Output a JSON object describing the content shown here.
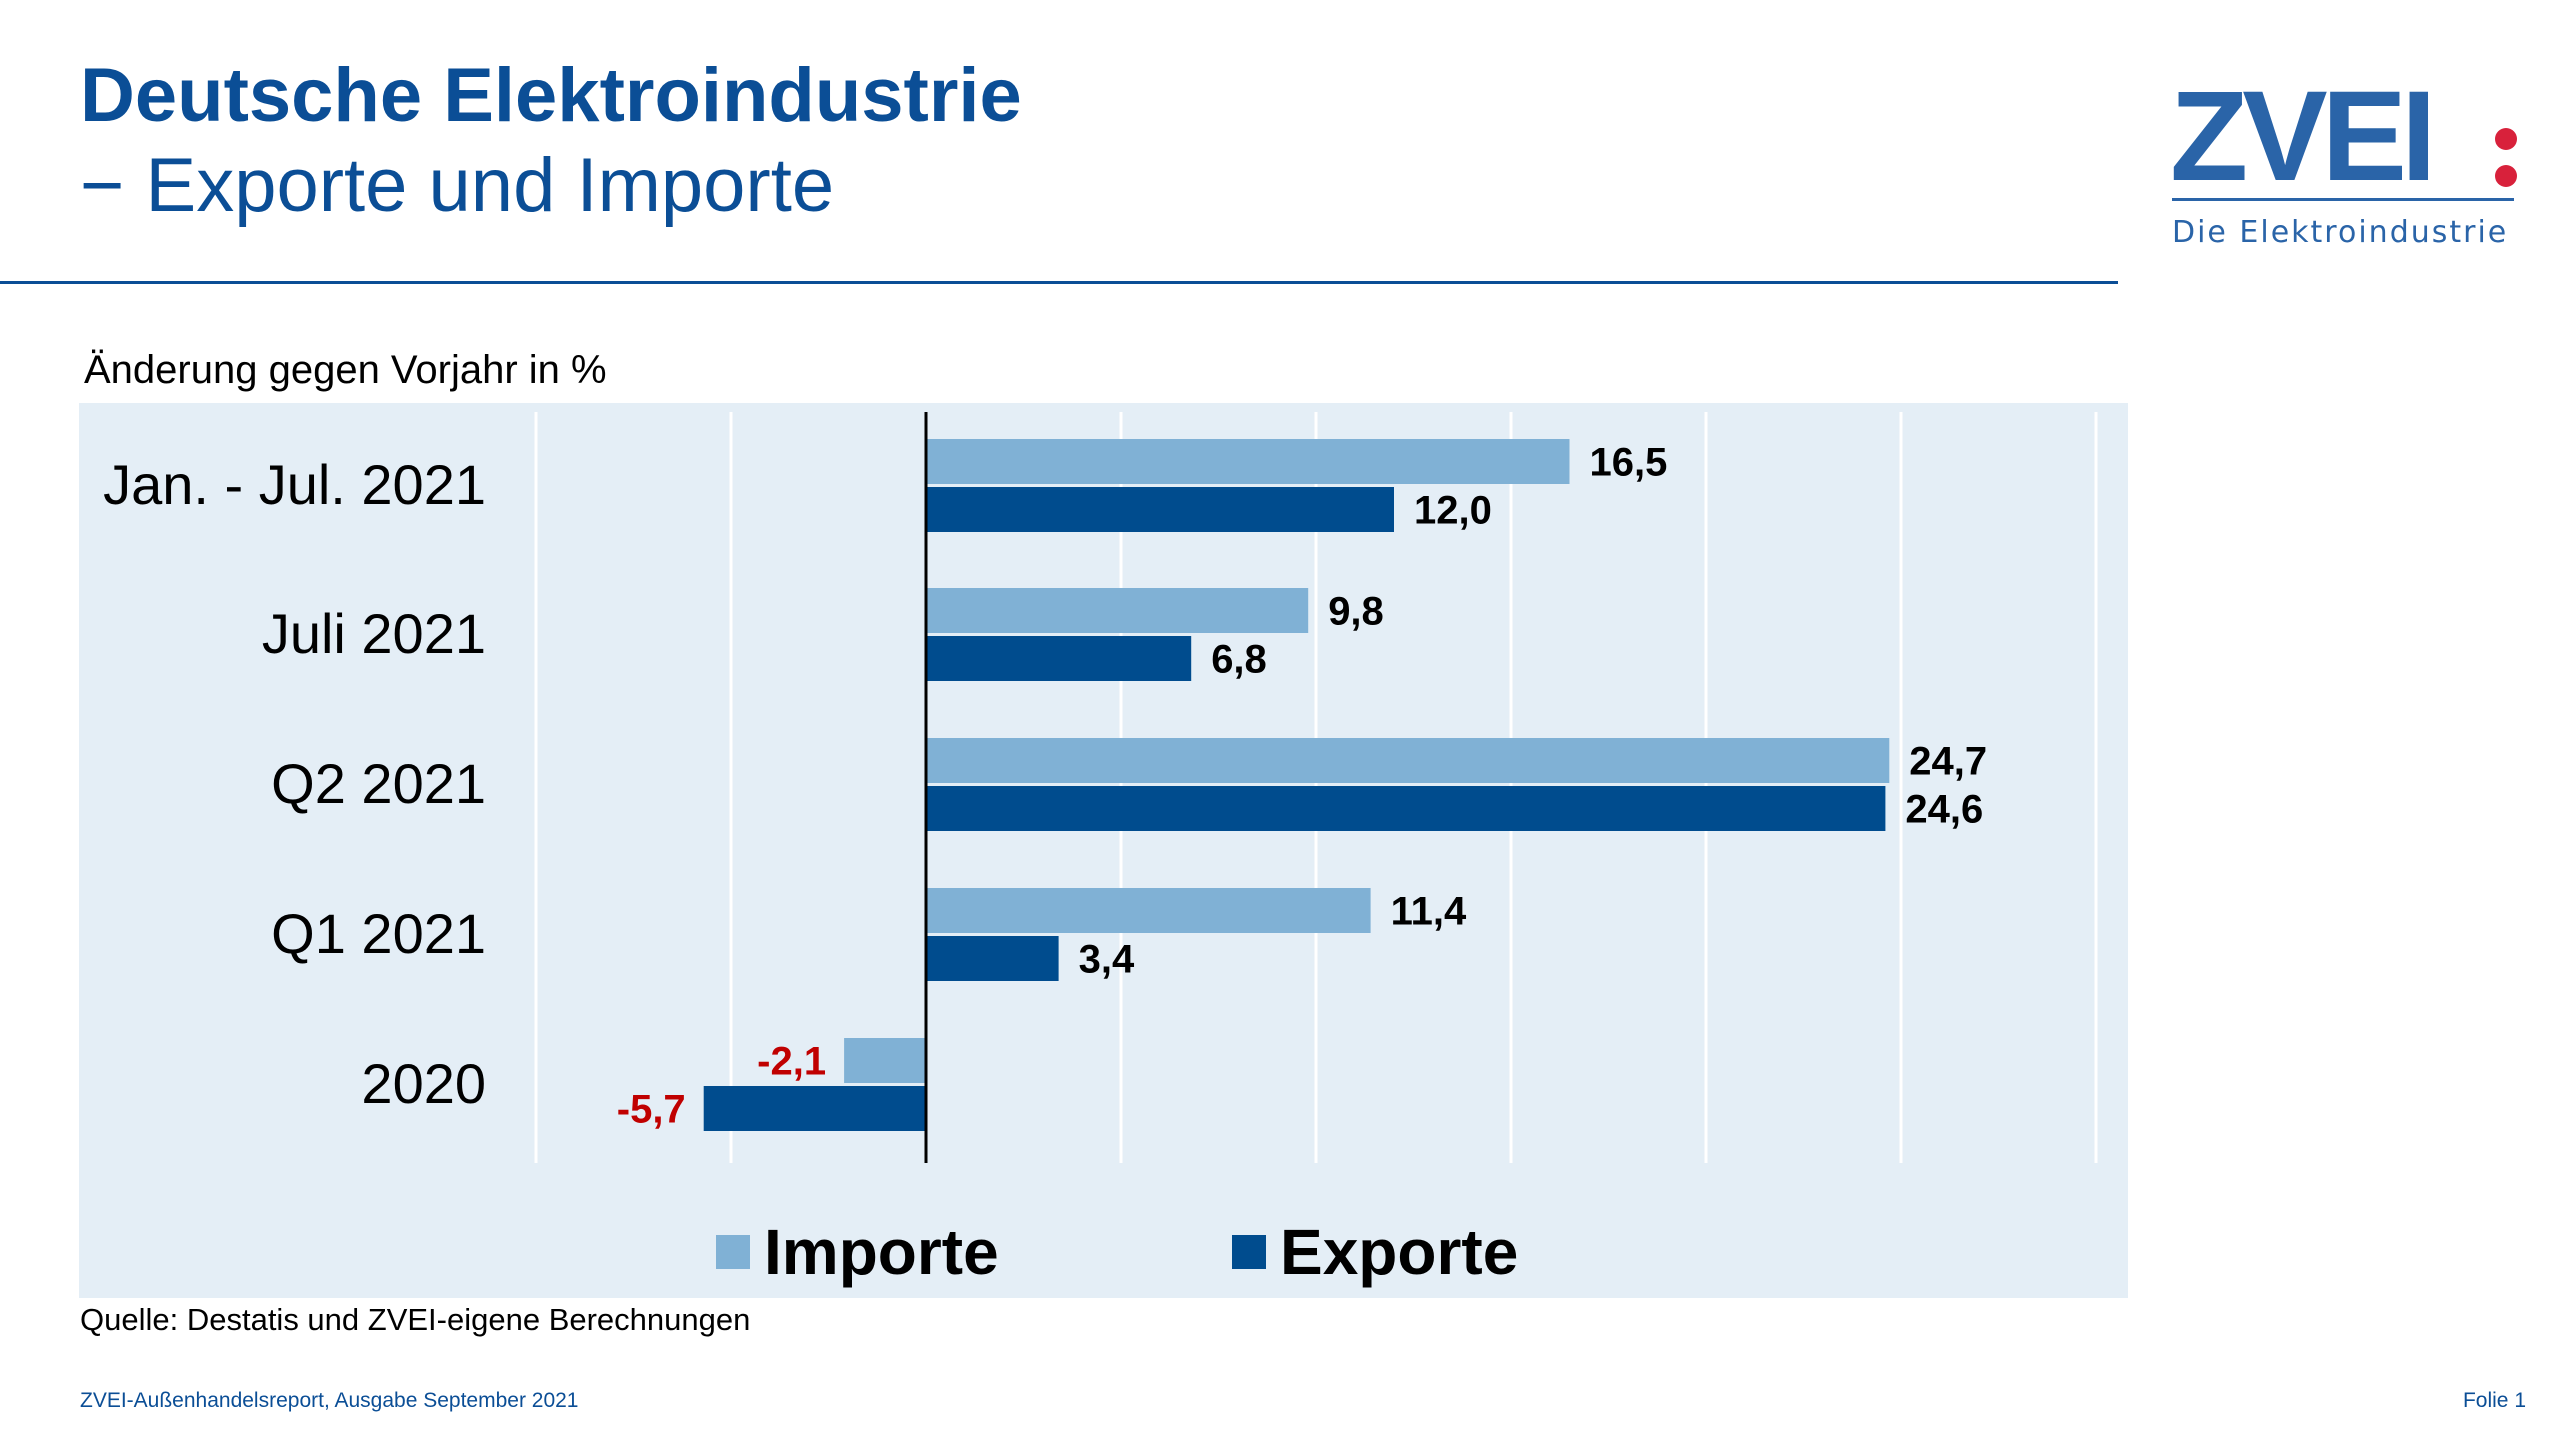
{
  "header": {
    "title": "Deutsche Elektroindustrie",
    "subtitle": "− Exporte und Importe"
  },
  "logo": {
    "text": "ZVEI:",
    "tagline": "Die Elektroindustrie",
    "color": "#2a64a8",
    "dot_color": "#d8213b"
  },
  "chart_data": {
    "type": "bar",
    "orientation": "horizontal",
    "title": "",
    "ylabel": "Änderung gegen Vorjahr in %",
    "categories": [
      "Jan. - Jul. 2021",
      "Juli 2021",
      "Q2 2021",
      "Q1 2021",
      "2020"
    ],
    "series": [
      {
        "name": "Importe",
        "color": "#80b1d5",
        "values": [
          16.5,
          9.8,
          24.7,
          11.4,
          -2.1
        ],
        "labels": [
          "16,5",
          "9,8",
          "24,7",
          "11,4",
          "-2,1"
        ]
      },
      {
        "name": "Exporte",
        "color": "#004c8e",
        "values": [
          12.0,
          6.8,
          24.6,
          3.4,
          -5.7
        ],
        "labels": [
          "12,0",
          "6,8",
          "24,6",
          "3,4",
          "-5,7"
        ]
      }
    ],
    "xlim": [
      -10,
      30
    ],
    "grid_step": 5,
    "grid": true,
    "legend": "bottom",
    "negative_label_color": "#c00000",
    "positive_label_color": "#000000",
    "background": "#e4eef6"
  },
  "footer": {
    "source": "Quelle: Destatis und ZVEI-eigene Berechnungen",
    "report": "ZVEI-Außenhandelsreport, Ausgabe September 2021",
    "slide": "Folie 1"
  }
}
